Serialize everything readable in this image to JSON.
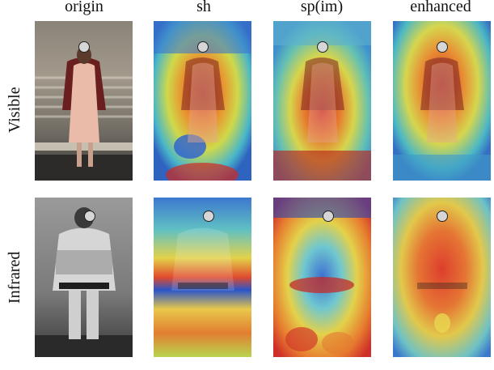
{
  "columns": [
    "origin",
    "sh",
    "sp(im)",
    "enhanced"
  ],
  "rows": [
    "Visible",
    "Infrared"
  ],
  "panels": [
    {
      "row": "Visible",
      "column": "origin",
      "image": "color photo of a woman in a pink dress and dark red jacket on steps"
    },
    {
      "row": "Visible",
      "column": "sh",
      "image": "attention heatmap over visible photo"
    },
    {
      "row": "Visible",
      "column": "sp(im)",
      "image": "attention heatmap over visible photo"
    },
    {
      "row": "Visible",
      "column": "enhanced",
      "image": "attention heatmap over visible photo"
    },
    {
      "row": "Infrared",
      "column": "origin",
      "image": "grayscale infrared photo of a person in a light jacket with dark belt"
    },
    {
      "row": "Infrared",
      "column": "sh",
      "image": "attention heatmap over infrared photo"
    },
    {
      "row": "Infrared",
      "column": "sp(im)",
      "image": "attention heatmap over infrared photo"
    },
    {
      "row": "Infrared",
      "column": "enhanced",
      "image": "attention heatmap over infrared photo"
    }
  ],
  "marker_icon": "circle-marker"
}
